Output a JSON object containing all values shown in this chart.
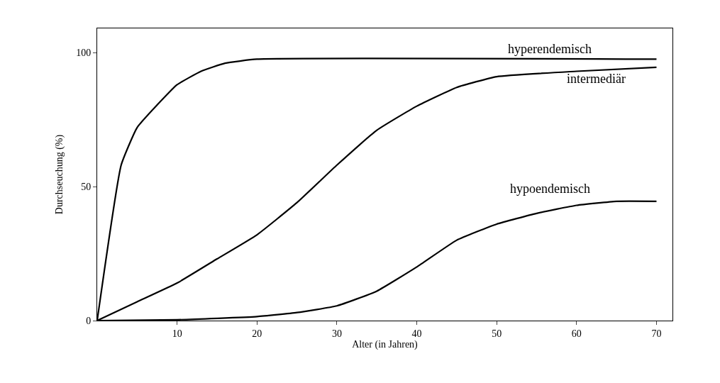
{
  "chart_data": {
    "type": "line",
    "xlabel": "Alter (in Jahren)",
    "ylabel": "Durchseuchung (%)",
    "xlim": [
      0,
      72
    ],
    "ylim": [
      0,
      109
    ],
    "xticks": [
      10,
      20,
      30,
      40,
      50,
      60,
      70
    ],
    "yticks": [
      0,
      50,
      100
    ],
    "grid": false,
    "legend": false,
    "marker": "none",
    "line_style": "solid",
    "series": [
      {
        "name": "hyperendemisch",
        "color": "#000000",
        "x": [
          0,
          3,
          5,
          8,
          10,
          13,
          16,
          20,
          70
        ],
        "values": [
          0,
          58,
          72,
          82,
          88,
          93,
          96,
          97.5,
          97.5
        ]
      },
      {
        "name": "intermediär",
        "color": "#000000",
        "x": [
          0,
          5,
          10,
          15,
          20,
          25,
          30,
          35,
          40,
          45,
          50,
          60,
          70
        ],
        "values": [
          0,
          7,
          14,
          23,
          32,
          44,
          58,
          71,
          80,
          87,
          91,
          93,
          94.5
        ]
      },
      {
        "name": "hypoendemisch",
        "color": "#000000",
        "x": [
          0,
          10,
          20,
          25,
          30,
          35,
          40,
          45,
          50,
          55,
          60,
          65,
          70
        ],
        "values": [
          0,
          0.3,
          1.5,
          3,
          5.5,
          11,
          20,
          30,
          36,
          40,
          43,
          44.5,
          44.5
        ]
      }
    ]
  }
}
